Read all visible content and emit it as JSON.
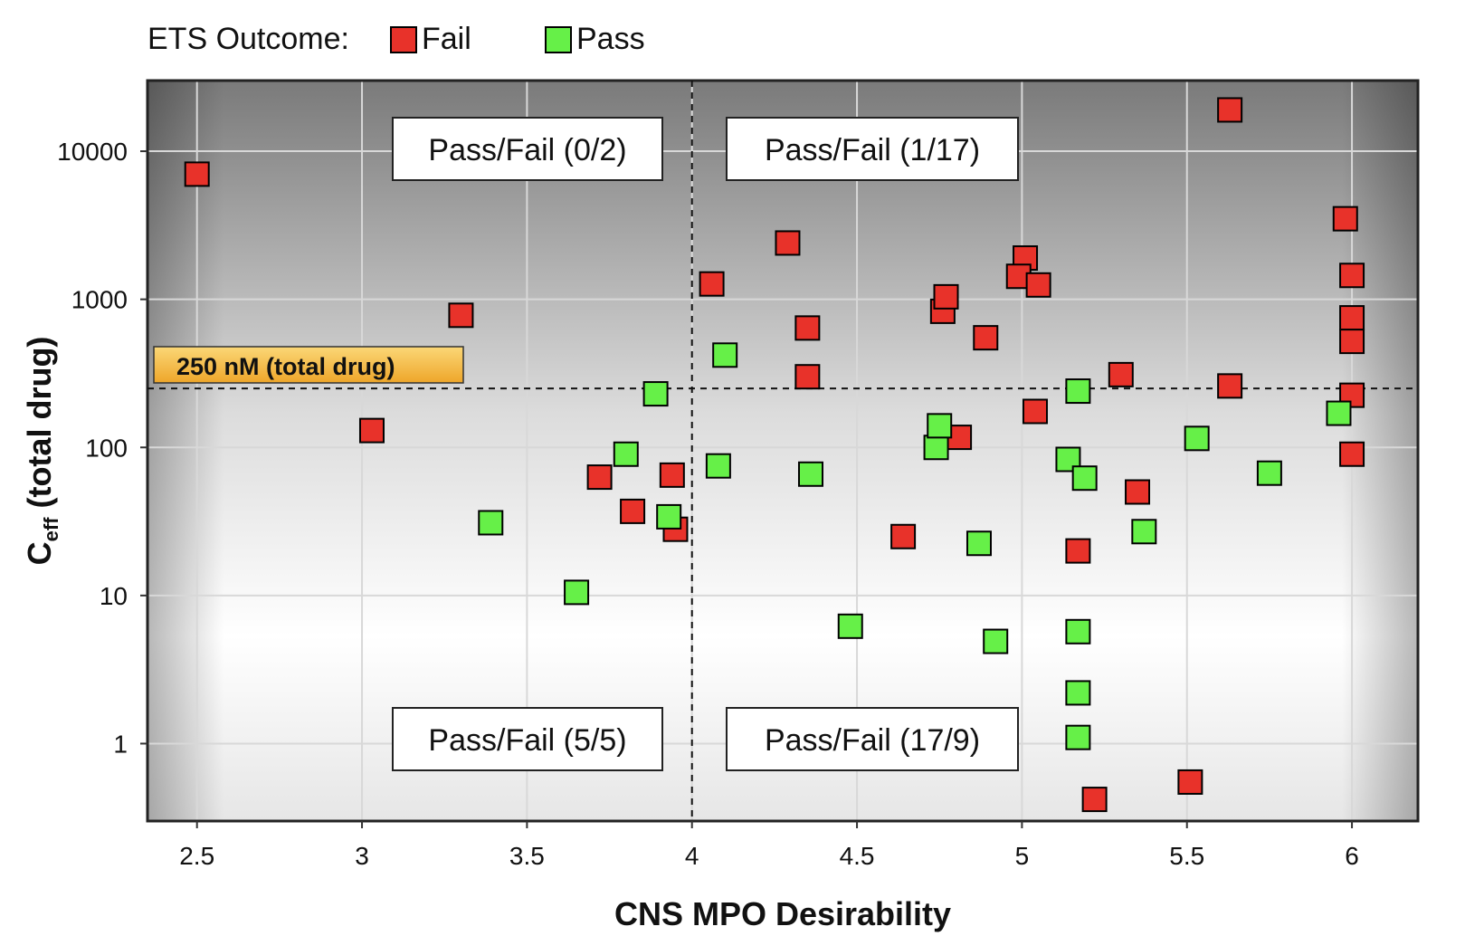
{
  "legend": {
    "title": "ETS Outcome:",
    "items": [
      {
        "label": "Fail",
        "color": "#e8322a"
      },
      {
        "label": "Pass",
        "color": "#66f048"
      }
    ]
  },
  "annotations": {
    "threshold_label": "250 nM (total drug)",
    "quadrant_top_left": "Pass/Fail (0/2)",
    "quadrant_top_right": "Pass/Fail (1/17)",
    "quadrant_bottom_left": "Pass/Fail (5/5)",
    "quadrant_bottom_right": "Pass/Fail (17/9)"
  },
  "colors": {
    "fail": "#e8322a",
    "pass": "#66f048",
    "threshold_box": "#f4b942",
    "plot_dark": "#7a7a7a",
    "plot_light": "#ffffff"
  },
  "chart_data": {
    "type": "scatter",
    "title": "",
    "xlabel": "CNS MPO Desirability",
    "ylabel_main": "C",
    "ylabel_sub": "eff",
    "ylabel_rest": " (total drug)",
    "xlim": [
      2.35,
      6.2
    ],
    "ylim": [
      0.3,
      30000
    ],
    "yscale": "log",
    "xticks": [
      2.5,
      3,
      3.5,
      4,
      4.5,
      5,
      5.5,
      6
    ],
    "xtick_labels": [
      "2.5",
      "3",
      "3.5",
      "4",
      "4.5",
      "5",
      "5.5",
      "6"
    ],
    "yticks": [
      1,
      10,
      100,
      1000,
      10000
    ],
    "ytick_labels": [
      "1",
      "10",
      "100",
      "1000",
      "10000"
    ],
    "grid": true,
    "legend_position": "top-left",
    "reference_lines": {
      "x": 4.0,
      "y": 250
    },
    "series": [
      {
        "name": "Fail",
        "color": "#e8322a",
        "points": [
          [
            2.5,
            7000
          ],
          [
            3.3,
            780
          ],
          [
            3.03,
            130
          ],
          [
            3.72,
            63
          ],
          [
            3.82,
            37
          ],
          [
            3.94,
            65
          ],
          [
            3.95,
            28
          ],
          [
            4.06,
            1270
          ],
          [
            4.29,
            2400
          ],
          [
            4.35,
            640
          ],
          [
            4.35,
            300
          ],
          [
            4.76,
            830
          ],
          [
            4.77,
            1040
          ],
          [
            4.89,
            550
          ],
          [
            4.81,
            117
          ],
          [
            4.64,
            25
          ],
          [
            5.01,
            1900
          ],
          [
            4.99,
            1430
          ],
          [
            5.05,
            1250
          ],
          [
            5.04,
            175
          ],
          [
            5.17,
            20
          ],
          [
            5.3,
            310
          ],
          [
            5.35,
            50
          ],
          [
            5.22,
            0.42
          ],
          [
            5.51,
            0.55
          ],
          [
            5.63,
            19000
          ],
          [
            5.63,
            260
          ],
          [
            5.98,
            3500
          ],
          [
            6.0,
            1450
          ],
          [
            6.0,
            750
          ],
          [
            6.0,
            520
          ],
          [
            6.0,
            225
          ],
          [
            6.0,
            90
          ]
        ]
      },
      {
        "name": "Pass",
        "color": "#66f048",
        "points": [
          [
            3.39,
            31
          ],
          [
            3.65,
            10.5
          ],
          [
            3.8,
            90
          ],
          [
            3.89,
            230
          ],
          [
            3.93,
            34
          ],
          [
            4.1,
            420
          ],
          [
            4.08,
            75
          ],
          [
            4.36,
            66
          ],
          [
            4.48,
            6.2
          ],
          [
            4.74,
            100
          ],
          [
            4.75,
            140
          ],
          [
            4.87,
            22.5
          ],
          [
            4.92,
            4.9
          ],
          [
            5.14,
            83
          ],
          [
            5.17,
            240
          ],
          [
            5.19,
            62
          ],
          [
            5.17,
            5.7
          ],
          [
            5.17,
            2.2
          ],
          [
            5.17,
            1.1
          ],
          [
            5.37,
            27
          ],
          [
            5.53,
            115
          ],
          [
            5.75,
            67
          ],
          [
            5.96,
            170
          ]
        ]
      }
    ]
  }
}
